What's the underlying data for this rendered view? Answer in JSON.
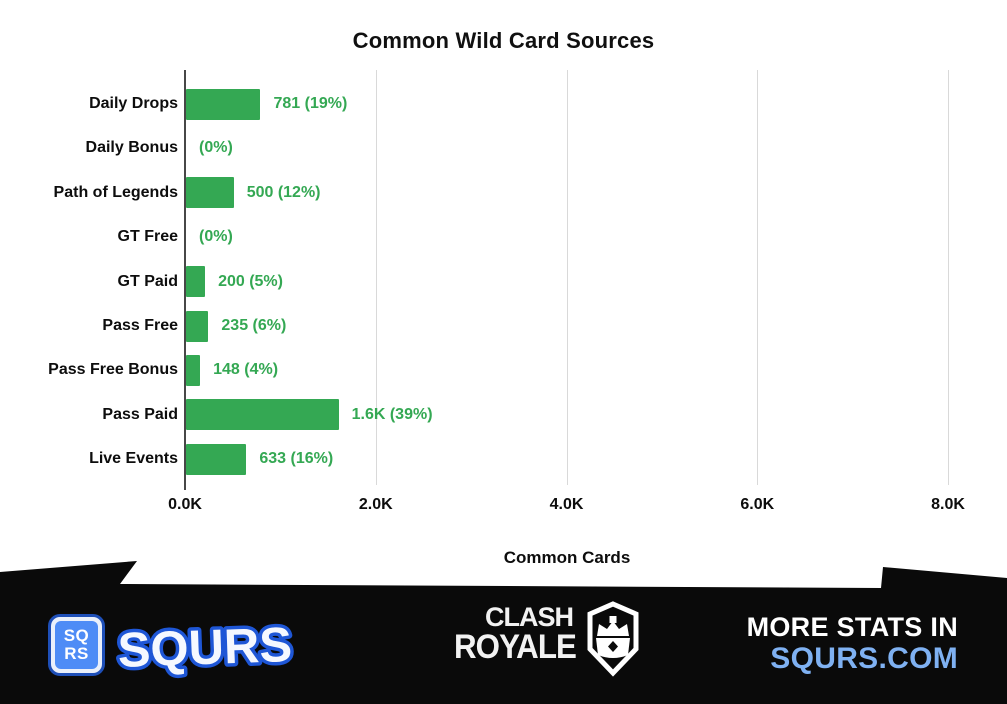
{
  "chart_data": {
    "type": "bar",
    "orientation": "horizontal",
    "title": "Common Wild Card Sources",
    "xlabel": "Common Cards",
    "categories": [
      "Daily Drops",
      "Daily Bonus",
      "Path of Legends",
      "GT Free",
      "GT Paid",
      "Pass Free",
      "Pass Free Bonus",
      "Pass Paid",
      "Live Events"
    ],
    "values": [
      781,
      0,
      500,
      0,
      200,
      235,
      148,
      1600,
      633
    ],
    "value_labels": [
      "781 (19%)",
      "(0%)",
      "500 (12%)",
      "(0%)",
      "200 (5%)",
      "235 (6%)",
      "148 (4%)",
      "1.6K (39%)",
      "633 (16%)"
    ],
    "xlim": [
      0,
      8000
    ],
    "x_ticks": [
      "0.0K",
      "2.0K",
      "4.0K",
      "6.0K",
      "8.0K"
    ],
    "x_tick_values": [
      0,
      2000,
      4000,
      6000,
      8000
    ],
    "grid": true,
    "legend": "none",
    "bar_color": "#34a853",
    "value_label_color": "#34a853"
  },
  "colors": {
    "bar_green": "#34a853",
    "banner_black": "#0a0a0a",
    "sqrs_blue": "#4e8cf6",
    "sqrs_outline_blue": "#1e56d6",
    "squrs_com_blue": "#7fb1f2",
    "gridline_gray": "#d9d9d9",
    "axis_gray": "#474747"
  },
  "banner": {
    "sqrs_logo": {
      "icon_line1": "SQ",
      "icon_line2": "RS",
      "wordmark": "SQURS"
    },
    "clash_logo": {
      "line1": "CLASH",
      "line2": "ROYALE"
    },
    "more_stats": {
      "line1": "MORE STATS IN",
      "line2": "SQURS.COM"
    }
  }
}
